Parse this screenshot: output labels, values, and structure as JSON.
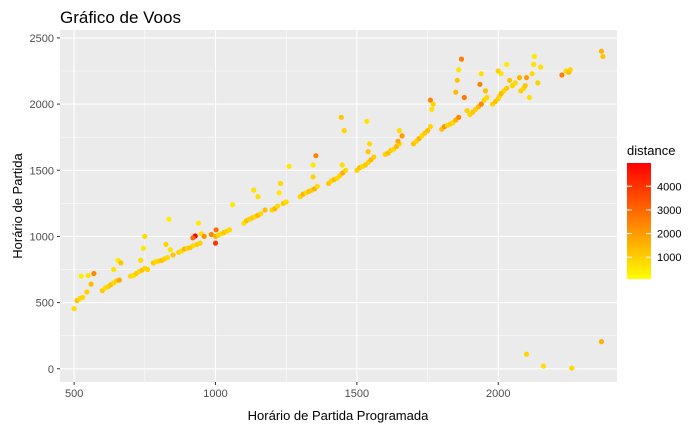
{
  "chart_data": {
    "type": "scatter",
    "title": "Gráfico de Voos",
    "xlabel": "Horário de Partida Programada",
    "ylabel": "Horário de Partida",
    "xlim": [
      450,
      2420
    ],
    "ylim": [
      -100,
      2560
    ],
    "x_ticks": [
      500,
      1000,
      1500,
      2000
    ],
    "y_ticks": [
      0,
      500,
      1000,
      1500,
      2000,
      2500
    ],
    "x_tick_labels": [
      "500",
      "1000",
      "1500",
      "2000"
    ],
    "y_tick_labels": [
      "0",
      "500",
      "1000",
      "1500",
      "2000",
      "2500"
    ],
    "grid": true,
    "panel_background": "#ebebeb",
    "grid_color": "#ffffff",
    "color_variable": "distance",
    "color_scale": {
      "low": "#ffff00",
      "high": "#ff0000",
      "range": [
        80,
        4983
      ],
      "breaks": [
        1000,
        2000,
        3000,
        4000
      ],
      "break_labels": [
        "1000",
        "2000",
        "3000",
        "4000"
      ]
    },
    "legend": {
      "title": "distance",
      "position": "right"
    },
    "points": [
      [
        500,
        455,
        700
      ],
      [
        510,
        515,
        1200
      ],
      [
        520,
        530,
        800
      ],
      [
        530,
        540,
        900
      ],
      [
        525,
        700,
        400
      ],
      [
        550,
        705,
        600
      ],
      [
        560,
        640,
        1400
      ],
      [
        570,
        720,
        2400
      ],
      [
        545,
        580,
        950
      ],
      [
        600,
        590,
        1100
      ],
      [
        610,
        610,
        700
      ],
      [
        620,
        620,
        900
      ],
      [
        630,
        635,
        1300
      ],
      [
        640,
        650,
        800
      ],
      [
        650,
        665,
        1000
      ],
      [
        660,
        670,
        1700
      ],
      [
        640,
        750,
        600
      ],
      [
        655,
        820,
        500
      ],
      [
        665,
        800,
        1200
      ],
      [
        700,
        700,
        900
      ],
      [
        710,
        705,
        600
      ],
      [
        720,
        720,
        1100
      ],
      [
        730,
        735,
        800
      ],
      [
        740,
        745,
        1300
      ],
      [
        750,
        760,
        900
      ],
      [
        735,
        820,
        700
      ],
      [
        745,
        910,
        500
      ],
      [
        750,
        1000,
        800
      ],
      [
        760,
        750,
        1000
      ],
      [
        780,
        800,
        1100
      ],
      [
        790,
        810,
        700
      ],
      [
        800,
        815,
        900
      ],
      [
        810,
        820,
        1300
      ],
      [
        820,
        830,
        1000
      ],
      [
        830,
        840,
        800
      ],
      [
        835,
        1130,
        400
      ],
      [
        840,
        900,
        600
      ],
      [
        850,
        860,
        1200
      ],
      [
        825,
        940,
        900
      ],
      [
        870,
        880,
        1000
      ],
      [
        880,
        890,
        700
      ],
      [
        890,
        905,
        1500
      ],
      [
        900,
        910,
        900
      ],
      [
        910,
        915,
        1200
      ],
      [
        920,
        930,
        800
      ],
      [
        935,
        940,
        1100
      ],
      [
        945,
        950,
        900
      ],
      [
        940,
        1100,
        500
      ],
      [
        950,
        1020,
        700
      ],
      [
        928,
        1003,
        4983
      ],
      [
        920,
        990,
        3000
      ],
      [
        960,
        1000,
        2200
      ],
      [
        985,
        1015,
        2400
      ],
      [
        1000,
        950,
        4000
      ],
      [
        1000,
        1000,
        1500
      ],
      [
        1002,
        1050,
        2800
      ],
      [
        1010,
        1010,
        900
      ],
      [
        1020,
        1020,
        700
      ],
      [
        1030,
        1030,
        1200
      ],
      [
        1040,
        1040,
        900
      ],
      [
        1050,
        1050,
        800
      ],
      [
        1060,
        1240,
        500
      ],
      [
        1100,
        1100,
        700
      ],
      [
        1110,
        1120,
        1300
      ],
      [
        1120,
        1130,
        900
      ],
      [
        1130,
        1140,
        1100
      ],
      [
        1140,
        1150,
        800
      ],
      [
        1150,
        1160,
        1500
      ],
      [
        1160,
        1170,
        900
      ],
      [
        1135,
        1350,
        600
      ],
      [
        1150,
        1300,
        700
      ],
      [
        1175,
        1200,
        1300
      ],
      [
        1200,
        1200,
        900
      ],
      [
        1210,
        1210,
        1400
      ],
      [
        1220,
        1230,
        800
      ],
      [
        1225,
        1330,
        500
      ],
      [
        1240,
        1250,
        1100
      ],
      [
        1250,
        1260,
        700
      ],
      [
        1230,
        1400,
        800
      ],
      [
        1260,
        1530,
        600
      ],
      [
        1300,
        1300,
        900
      ],
      [
        1310,
        1320,
        1500
      ],
      [
        1320,
        1330,
        800
      ],
      [
        1330,
        1340,
        1200
      ],
      [
        1340,
        1350,
        1000
      ],
      [
        1350,
        1360,
        1600
      ],
      [
        1360,
        1380,
        700
      ],
      [
        1345,
        1540,
        500
      ],
      [
        1355,
        1610,
        2400
      ],
      [
        1345,
        1450,
        900
      ],
      [
        1400,
        1400,
        1100
      ],
      [
        1410,
        1420,
        900
      ],
      [
        1420,
        1430,
        1300
      ],
      [
        1430,
        1440,
        800
      ],
      [
        1440,
        1460,
        1000
      ],
      [
        1450,
        1480,
        1700
      ],
      [
        1460,
        1500,
        800
      ],
      [
        1445,
        1900,
        1200
      ],
      [
        1455,
        1800,
        900
      ],
      [
        1448,
        1540,
        700
      ],
      [
        1500,
        1500,
        900
      ],
      [
        1510,
        1520,
        1300
      ],
      [
        1520,
        1530,
        800
      ],
      [
        1530,
        1540,
        1100
      ],
      [
        1540,
        1560,
        900
      ],
      [
        1550,
        1580,
        1400
      ],
      [
        1560,
        1600,
        1000
      ],
      [
        1535,
        1870,
        600
      ],
      [
        1545,
        1700,
        800
      ],
      [
        1540,
        1640,
        1200
      ],
      [
        1600,
        1620,
        900
      ],
      [
        1610,
        1630,
        1300
      ],
      [
        1620,
        1650,
        1000
      ],
      [
        1630,
        1660,
        800
      ],
      [
        1640,
        1680,
        1400
      ],
      [
        1650,
        1700,
        900
      ],
      [
        1645,
        1720,
        1700
      ],
      [
        1660,
        1760,
        2000
      ],
      [
        1650,
        1800,
        700
      ],
      [
        1700,
        1700,
        1200
      ],
      [
        1710,
        1720,
        900
      ],
      [
        1720,
        1740,
        1500
      ],
      [
        1730,
        1760,
        800
      ],
      [
        1740,
        1780,
        1100
      ],
      [
        1750,
        1800,
        1300
      ],
      [
        1760,
        1830,
        900
      ],
      [
        1760,
        2030,
        2400
      ],
      [
        1765,
        1960,
        700
      ],
      [
        1770,
        2000,
        900
      ],
      [
        1800,
        1810,
        1300
      ],
      [
        1810,
        1830,
        2200
      ],
      [
        1820,
        1840,
        900
      ],
      [
        1830,
        1850,
        1100
      ],
      [
        1840,
        1860,
        800
      ],
      [
        1850,
        1880,
        1500
      ],
      [
        1860,
        1900,
        2400
      ],
      [
        1855,
        2180,
        1200
      ],
      [
        1860,
        2260,
        600
      ],
      [
        1870,
        2340,
        2600
      ],
      [
        1850,
        2090,
        1400
      ],
      [
        1880,
        2050,
        2700
      ],
      [
        1890,
        1950,
        1000
      ],
      [
        1900,
        1920,
        900
      ],
      [
        1910,
        1940,
        1200
      ],
      [
        1920,
        1960,
        1000
      ],
      [
        1930,
        1980,
        1400
      ],
      [
        1940,
        2000,
        2400
      ],
      [
        1950,
        2030,
        900
      ],
      [
        1960,
        2050,
        800
      ],
      [
        1935,
        2150,
        2500
      ],
      [
        1955,
        2100,
        1300
      ],
      [
        1940,
        2230,
        700
      ],
      [
        1980,
        2000,
        900
      ],
      [
        1990,
        2020,
        1300
      ],
      [
        2000,
        2040,
        1000
      ],
      [
        2005,
        2060,
        800
      ],
      [
        2010,
        2080,
        1400
      ],
      [
        2020,
        2100,
        900
      ],
      [
        2030,
        2120,
        1100
      ],
      [
        2000,
        2250,
        900
      ],
      [
        2010,
        2230,
        600
      ],
      [
        2030,
        2300,
        500
      ],
      [
        2040,
        2180,
        1200
      ],
      [
        2050,
        2140,
        900
      ],
      [
        2060,
        2160,
        800
      ],
      [
        2075,
        2200,
        1500
      ],
      [
        2080,
        2100,
        1000
      ],
      [
        2090,
        2120,
        900
      ],
      [
        2095,
        2140,
        1200
      ],
      [
        2100,
        2200,
        2000
      ],
      [
        2110,
        2050,
        700
      ],
      [
        2120,
        2230,
        800
      ],
      [
        2125,
        2300,
        600
      ],
      [
        2128,
        2360,
        500
      ],
      [
        2140,
        2160,
        1000
      ],
      [
        2150,
        2280,
        700
      ],
      [
        2100,
        110,
        900
      ],
      [
        2160,
        20,
        700
      ],
      [
        2260,
        5,
        800
      ],
      [
        2225,
        2220,
        2500
      ],
      [
        2240,
        2250,
        800
      ],
      [
        2250,
        2240,
        1300
      ],
      [
        2255,
        2260,
        900
      ],
      [
        2365,
        2400,
        1500
      ],
      [
        2370,
        2360,
        1200
      ],
      [
        2365,
        205,
        1600
      ]
    ]
  }
}
